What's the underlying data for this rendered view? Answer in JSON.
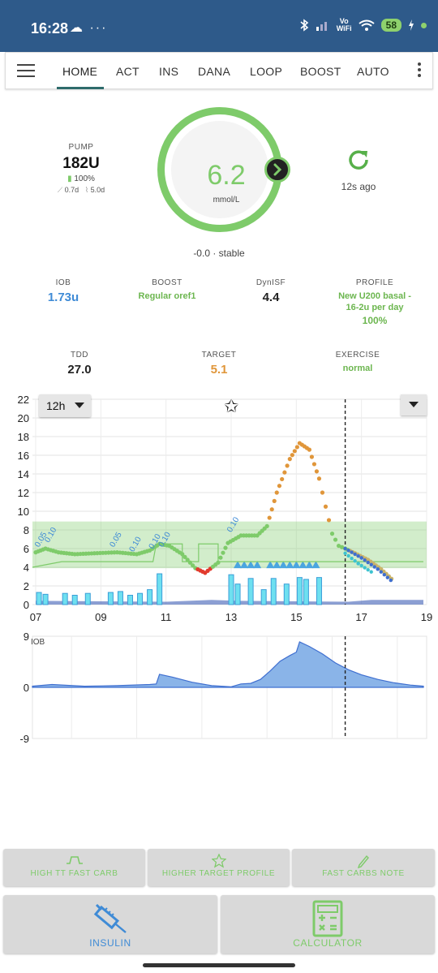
{
  "status_bar": {
    "time": "16:28",
    "left_icons": "☁ ···",
    "vo": "Vo",
    "wifi": "WiFi",
    "battery": "58"
  },
  "tabs": [
    {
      "label": "HOME",
      "active": true
    },
    {
      "label": "ACT"
    },
    {
      "label": "INS"
    },
    {
      "label": "DANA"
    },
    {
      "label": "LOOP"
    },
    {
      "label": "BOOST"
    },
    {
      "label": "AUTO"
    }
  ],
  "pump": {
    "label": "PUMP",
    "reservoir": "182U",
    "battery": "100%",
    "cannula_age": "0.7d",
    "sensor_age": "5.0d"
  },
  "bg": {
    "value": "6.2",
    "unit": "mmol/L",
    "delta": "-0.0 · stable",
    "age": "12s ago",
    "color": "#7ecb6a"
  },
  "stats_row1": {
    "iob": {
      "label": "IOB",
      "value": "1.73u"
    },
    "boost": {
      "label": "BOOST",
      "value": "Regular oref1"
    },
    "dynisf": {
      "label": "DynISF",
      "value": "4.4"
    },
    "profile": {
      "label": "PROFILE",
      "value_line1": "New U200 basal -",
      "value_line2": "16-2u per day",
      "percent": "100%"
    }
  },
  "stats_row2": {
    "tdd": {
      "label": "TDD",
      "value": "27.0"
    },
    "target": {
      "label": "TARGET",
      "value": "5.1"
    },
    "exercise": {
      "label": "EXERCISE",
      "value": "normal"
    }
  },
  "chart_controls": {
    "range": "12h"
  },
  "chart_data": [
    {
      "type": "scatter",
      "title": "",
      "x_ticks": [
        "07",
        "09",
        "11",
        "13",
        "15",
        "17",
        "19"
      ],
      "y_ticks": [
        0,
        2,
        4,
        6,
        8,
        10,
        12,
        14,
        16,
        18,
        20,
        22
      ],
      "ylim": [
        0,
        22
      ],
      "xlim": [
        6.9,
        19.0
      ],
      "target_range": [
        3.9,
        8.9
      ],
      "now": 16.5,
      "bolus_labels": [
        {
          "x": 7.1,
          "y": 6.1,
          "text": "0.05"
        },
        {
          "x": 7.4,
          "y": 6.6,
          "text": "0.10"
        },
        {
          "x": 9.4,
          "y": 6.1,
          "text": "0.05"
        },
        {
          "x": 10.0,
          "y": 5.6,
          "text": "0.10"
        },
        {
          "x": 10.6,
          "y": 5.9,
          "text": "0.10"
        },
        {
          "x": 10.9,
          "y": 6.1,
          "text": "0.10"
        },
        {
          "x": 13.0,
          "y": 7.7,
          "text": "0.10"
        }
      ],
      "series": [
        {
          "name": "",
          "values": [
            [
              7.0,
              5.6
            ],
            [
              7.3,
              6.0
            ],
            [
              7.7,
              5.6
            ],
            [
              8.2,
              5.4
            ],
            [
              8.8,
              5.5
            ],
            [
              9.5,
              5.6
            ],
            [
              10.1,
              5.4
            ],
            [
              10.5,
              5.8
            ],
            [
              10.8,
              6.5
            ],
            [
              11.1,
              6.3
            ],
            [
              11.5,
              5.4
            ],
            [
              11.9,
              3.9
            ],
            [
              12.2,
              3.4
            ],
            [
              12.6,
              4.5
            ],
            [
              12.9,
              6.6
            ],
            [
              13.3,
              7.4
            ],
            [
              13.8,
              7.4
            ],
            [
              14.1,
              8.4
            ],
            [
              14.4,
              12.0
            ],
            [
              14.8,
              15.6
            ],
            [
              15.1,
              17.3
            ],
            [
              15.4,
              16.6
            ],
            [
              15.7,
              13.5
            ],
            [
              15.9,
              10.5
            ],
            [
              16.1,
              7.6
            ],
            [
              16.3,
              6.3
            ],
            [
              16.5,
              6.0
            ],
            [
              16.8,
              5.5
            ],
            [
              17.2,
              4.8
            ],
            [
              17.6,
              3.8
            ],
            [
              18.0,
              2.5
            ]
          ]
        }
      ],
      "predictions": [
        {
          "name": "",
          "values": [
            [
              16.5,
              5.5
            ],
            [
              16.9,
              4.4
            ],
            [
              17.3,
              3.5
            ]
          ]
        },
        {
          "name": "",
          "values": [
            [
              16.5,
              6.0
            ],
            [
              17.0,
              5.0
            ],
            [
              17.5,
              3.8
            ],
            [
              17.9,
              2.6
            ]
          ]
        }
      ],
      "basal_profile": [
        [
          6.9,
          4.0
        ],
        [
          7.8,
          4.6
        ],
        [
          10.6,
          4.6
        ],
        [
          10.7,
          6.5
        ],
        [
          11.5,
          6.5
        ],
        [
          11.5,
          4.6
        ],
        [
          12.0,
          4.6
        ],
        [
          12.0,
          6.5
        ],
        [
          12.6,
          6.5
        ],
        [
          12.6,
          4.6
        ],
        [
          18.9,
          4.6
        ]
      ],
      "bolus_bars": [
        [
          7.1,
          1.3
        ],
        [
          7.3,
          1.1
        ],
        [
          7.9,
          1.2
        ],
        [
          8.2,
          1.0
        ],
        [
          8.6,
          1.2
        ],
        [
          9.3,
          1.3
        ],
        [
          9.6,
          1.4
        ],
        [
          9.9,
          1.0
        ],
        [
          10.2,
          1.2
        ],
        [
          10.5,
          1.6
        ],
        [
          10.8,
          3.3
        ],
        [
          13.0,
          3.2
        ],
        [
          13.2,
          2.2
        ],
        [
          13.6,
          2.8
        ],
        [
          14.0,
          1.6
        ],
        [
          14.3,
          2.8
        ],
        [
          14.7,
          2.2
        ],
        [
          15.1,
          2.9
        ],
        [
          15.3,
          2.7
        ],
        [
          15.7,
          2.9
        ]
      ],
      "temp_basal": [
        [
          7.0,
          0.4
        ],
        [
          11.0,
          0.3
        ],
        [
          12.4,
          0.5
        ],
        [
          13.2,
          0.4
        ],
        [
          16.6,
          0.3
        ],
        [
          17.3,
          0.5
        ],
        [
          18.9,
          0.5
        ]
      ],
      "smb_triangles": [
        13.2,
        13.4,
        13.6,
        13.8,
        14.2,
        14.4,
        14.6,
        14.8,
        15.0,
        15.2,
        15.4,
        15.6
      ]
    },
    {
      "type": "area",
      "title": "",
      "ylabel": "IOB",
      "y_ticks": [
        -9,
        0,
        9
      ],
      "ylim": [
        -9,
        9
      ],
      "xlim": [
        6.9,
        19.0
      ],
      "now": 16.5,
      "values": [
        [
          6.9,
          0.2
        ],
        [
          7.5,
          0.5
        ],
        [
          8.5,
          0.2
        ],
        [
          9.5,
          0.3
        ],
        [
          10.5,
          0.5
        ],
        [
          10.7,
          0.6
        ],
        [
          10.8,
          2.3
        ],
        [
          11.2,
          1.8
        ],
        [
          11.8,
          0.9
        ],
        [
          12.4,
          0.3
        ],
        [
          13.0,
          0.1
        ],
        [
          13.3,
          0.6
        ],
        [
          13.6,
          0.7
        ],
        [
          13.9,
          1.4
        ],
        [
          14.2,
          2.9
        ],
        [
          14.5,
          4.6
        ],
        [
          14.8,
          5.6
        ],
        [
          15.0,
          6.2
        ],
        [
          15.1,
          8.0
        ],
        [
          15.4,
          7.2
        ],
        [
          15.8,
          5.9
        ],
        [
          16.2,
          4.3
        ],
        [
          16.6,
          3.1
        ],
        [
          17.0,
          2.2
        ],
        [
          17.5,
          1.4
        ],
        [
          18.0,
          0.8
        ],
        [
          18.5,
          0.4
        ],
        [
          18.9,
          0.2
        ]
      ]
    }
  ],
  "quick_actions": [
    {
      "label": "HIGH TT FAST CARB",
      "icon": "high-temp-target-icon"
    },
    {
      "label": "HIGHER TARGET PROFILE",
      "icon": "star-icon"
    },
    {
      "label": "FAST CARBS NOTE",
      "icon": "pencil-icon"
    }
  ],
  "main_actions": [
    {
      "label": "INSULIN",
      "icon": "syringe-icon",
      "color": "#3f8bd6"
    },
    {
      "label": "CALCULATOR",
      "icon": "calculator-icon",
      "color": "#7ecb6a"
    }
  ]
}
